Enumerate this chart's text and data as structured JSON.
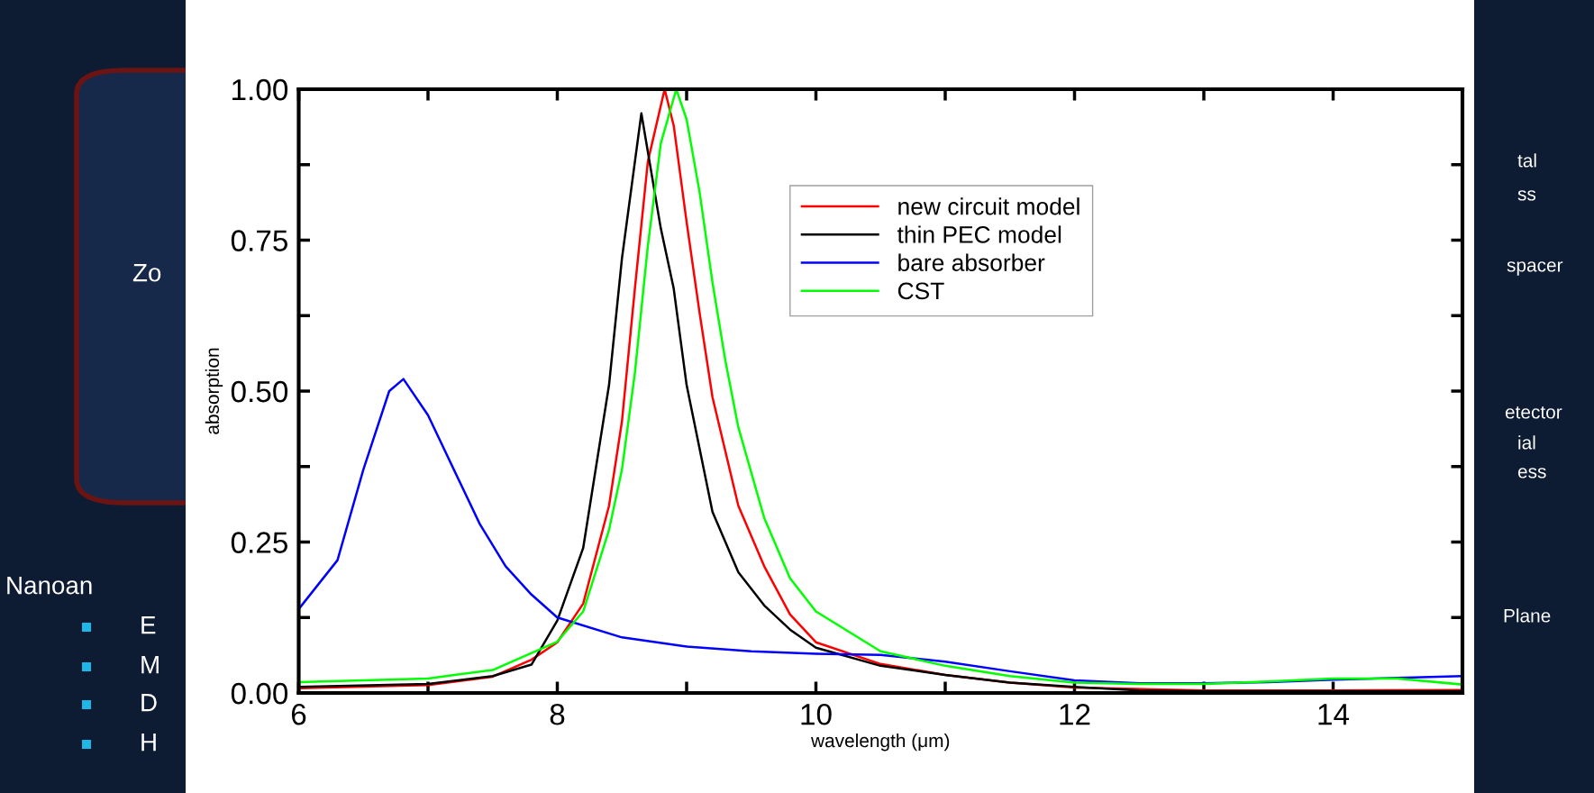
{
  "chart_data": {
    "type": "line",
    "xlabel": "wavelength (μm)",
    "ylabel": "absorption",
    "xlim": [
      6,
      15
    ],
    "ylim": [
      0,
      1
    ],
    "xticks": [
      6,
      {
        "value": 7,
        "label": null
      },
      8,
      {
        "value": 9,
        "label": null
      },
      10,
      {
        "value": 11,
        "label": null
      },
      12,
      {
        "value": 13,
        "label": null
      },
      14
    ],
    "yticks": [
      {
        "value": 0,
        "label": "0.00"
      },
      {
        "value": 0.125,
        "label": null
      },
      {
        "value": 0.25,
        "label": "0.25"
      },
      {
        "value": 0.375,
        "label": null
      },
      {
        "value": 0.5,
        "label": "0.50"
      },
      {
        "value": 0.625,
        "label": null
      },
      {
        "value": 0.75,
        "label": "0.75"
      },
      {
        "value": 0.875,
        "label": null
      },
      {
        "value": 1,
        "label": "1.00"
      }
    ],
    "grid": false,
    "legend": "top",
    "marker": "none",
    "line_style": "solid",
    "series": [
      {
        "name": "new circuit model",
        "color": "#ff0000",
        "x": [
          6,
          7,
          7.5,
          7.8,
          8,
          8.2,
          8.4,
          8.5,
          8.6,
          8.7,
          8.83,
          8.9,
          9,
          9.1,
          9.2,
          9.4,
          9.6,
          9.8,
          10,
          10.5,
          11,
          11.5,
          12,
          13,
          14,
          15
        ],
        "values": [
          0.008,
          0.013,
          0.027,
          0.055,
          0.084,
          0.148,
          0.31,
          0.45,
          0.67,
          0.88,
          1.0,
          0.94,
          0.78,
          0.63,
          0.49,
          0.31,
          0.21,
          0.13,
          0.084,
          0.048,
          0.03,
          0.017,
          0.009,
          0.004,
          0.004,
          0.005
        ]
      },
      {
        "name": "thin PEC model",
        "color": "#000000",
        "x": [
          6,
          7,
          7.5,
          7.8,
          8,
          8.2,
          8.4,
          8.5,
          8.65,
          8.8,
          8.9,
          9,
          9.2,
          9.4,
          9.6,
          9.8,
          10,
          10.5,
          11,
          11.5,
          12,
          12.5,
          13,
          14,
          15
        ],
        "values": [
          0.01,
          0.015,
          0.028,
          0.047,
          0.12,
          0.24,
          0.51,
          0.72,
          0.96,
          0.77,
          0.67,
          0.51,
          0.3,
          0.2,
          0.145,
          0.105,
          0.075,
          0.045,
          0.03,
          0.017,
          0.01,
          0.004,
          0.003,
          0.003,
          0.003
        ]
      },
      {
        "name": "bare absorber",
        "color": "#0000ff",
        "x": [
          6,
          6.3,
          6.5,
          6.7,
          6.81,
          7,
          7.2,
          7.4,
          7.6,
          7.8,
          8,
          8.5,
          9,
          9.5,
          10,
          10.5,
          11,
          11.5,
          12,
          12.5,
          13,
          13.5,
          14,
          14.5,
          15
        ],
        "values": [
          0.139,
          0.22,
          0.37,
          0.5,
          0.52,
          0.46,
          0.37,
          0.28,
          0.21,
          0.163,
          0.125,
          0.092,
          0.077,
          0.069,
          0.065,
          0.063,
          0.052,
          0.036,
          0.021,
          0.016,
          0.016,
          0.018,
          0.022,
          0.025,
          0.028
        ]
      },
      {
        "name": "CST",
        "color": "#00ff00",
        "x": [
          6,
          7,
          7.5,
          8,
          8.2,
          8.4,
          8.5,
          8.6,
          8.7,
          8.8,
          8.92,
          9,
          9.1,
          9.2,
          9.3,
          9.4,
          9.6,
          9.8,
          10,
          10.5,
          11,
          11.5,
          12,
          12.5,
          13,
          13.5,
          14,
          14.5,
          15
        ],
        "values": [
          0.018,
          0.024,
          0.038,
          0.085,
          0.135,
          0.27,
          0.37,
          0.53,
          0.74,
          0.91,
          1.0,
          0.95,
          0.83,
          0.68,
          0.55,
          0.44,
          0.29,
          0.19,
          0.135,
          0.069,
          0.045,
          0.028,
          0.017,
          0.015,
          0.015,
          0.019,
          0.024,
          0.024,
          0.014
        ]
      }
    ],
    "annotations": [
      "Zo",
      "Nanoan",
      "E",
      "M",
      "D",
      "H",
      "tal",
      "ss",
      "spacer",
      "etector",
      "ial",
      "ess",
      "Plane"
    ]
  }
}
